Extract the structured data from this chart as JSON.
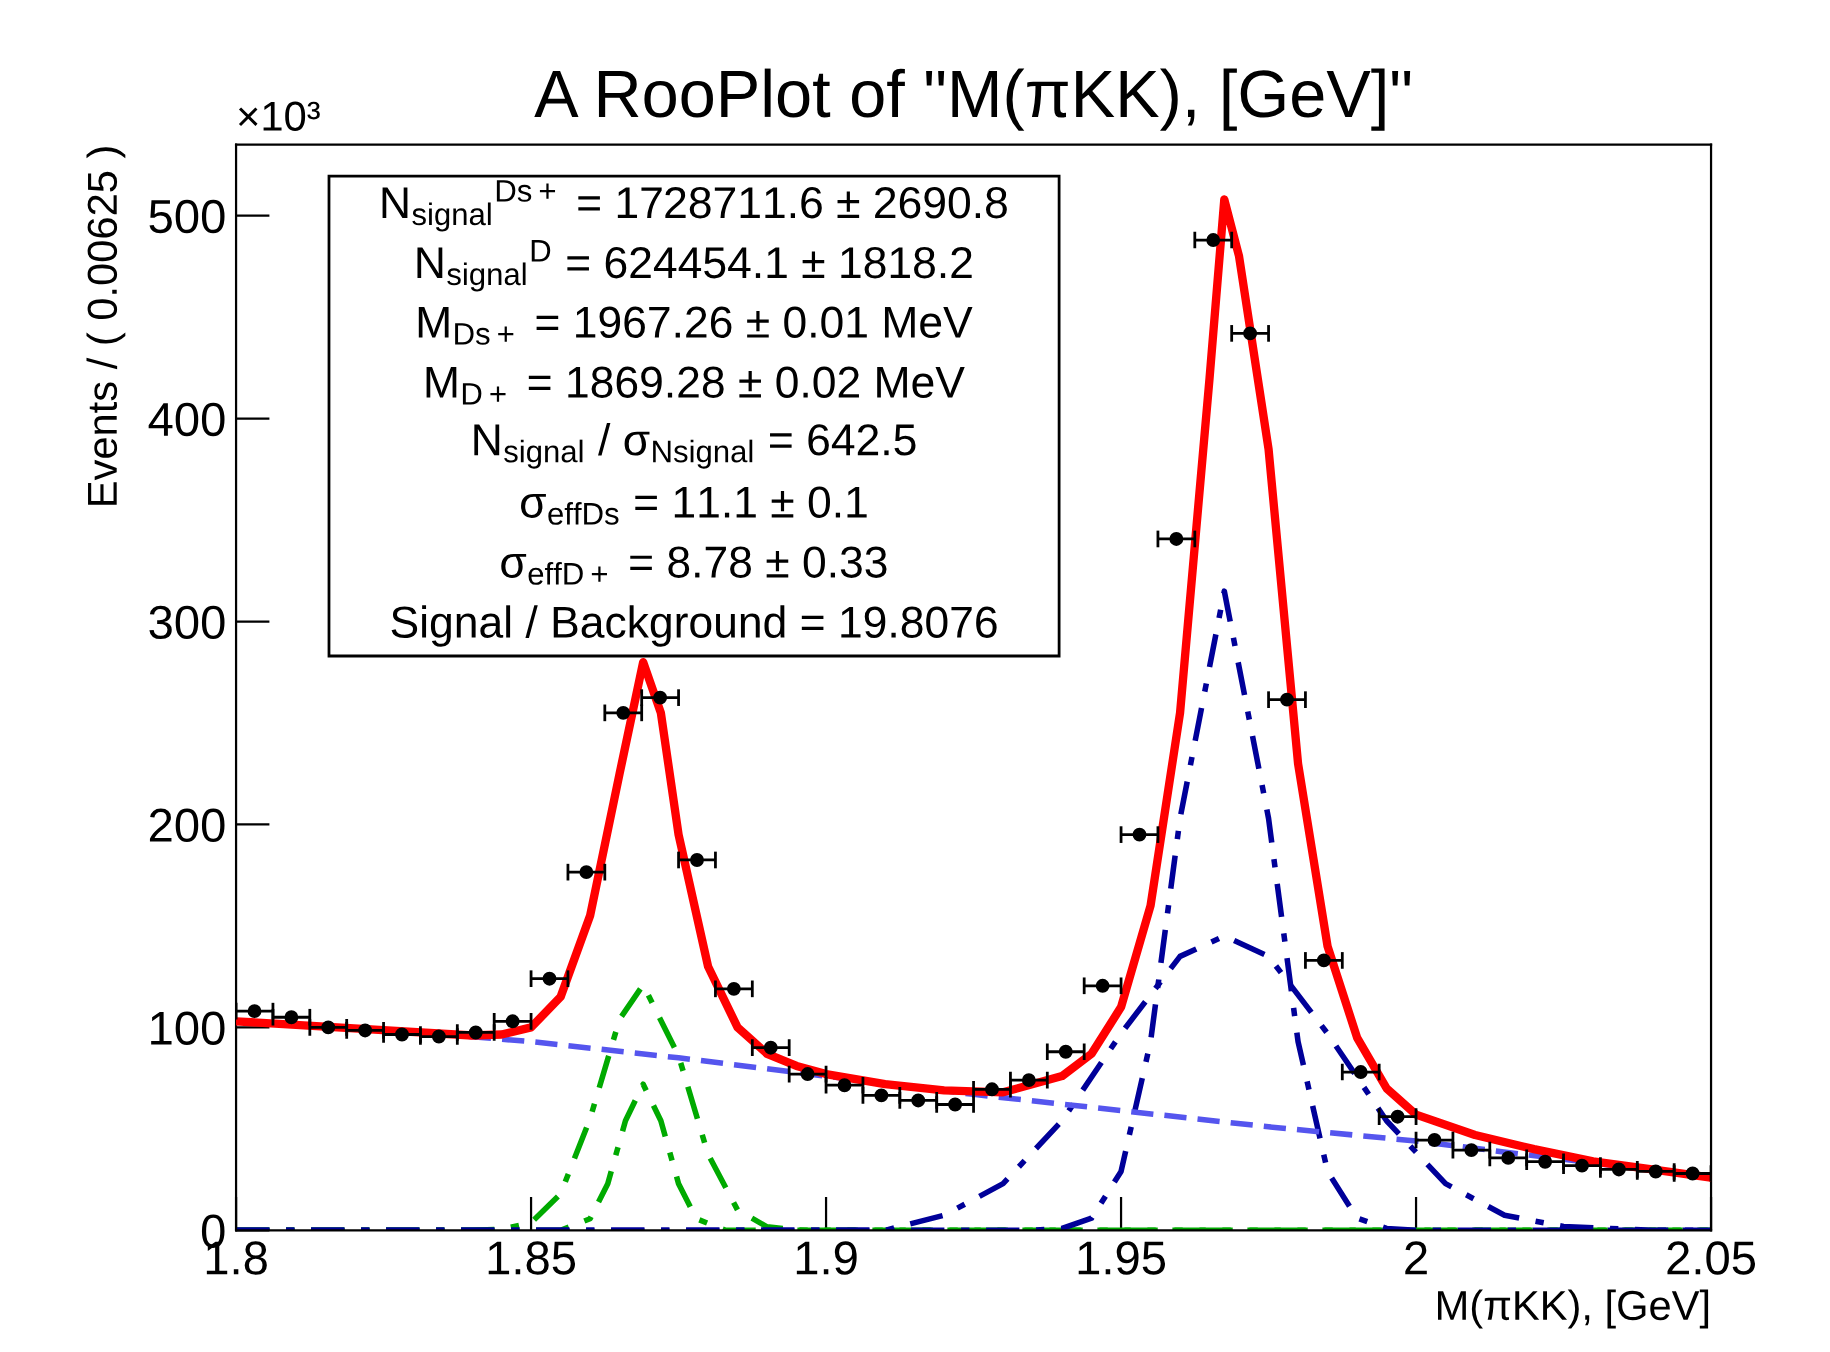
{
  "chart_data": {
    "type": "scatter",
    "title": "A RooPlot of \"M(πKK), [GeV]\"",
    "xlabel": "M(πKK), [GeV]",
    "ylabel": "Events / ( 0.00625 )",
    "xlim": [
      1.8,
      2.05
    ],
    "xticks": [
      1.8,
      1.85,
      1.9,
      1.95,
      2,
      2.05
    ],
    "ylim": [
      0,
      535
    ],
    "yticks": [
      0,
      100,
      200,
      300,
      400,
      500
    ],
    "grid": false,
    "legend": false,
    "annotations": [
      "×10³",
      "N$_{signal}$$^{Ds+}$ = 1728711.6 ± 2690.8",
      "N$_{signal}$$^{D}$ = 624454.1 ± 1818.2",
      "M$_{Ds+}$ = 1967.26 ± 0.01 MeV",
      "M$_{D+}$ = 1869.28 ± 0.02 MeV",
      "N$_{signal}$ / σ$_{Nsignal}$ = 642.5",
      "σ$_{effDs}$ = 11.1 ± 0.1",
      "σ$_{effD+}$ = 8.78 ± 0.33",
      "Signal / Background = 19.8076"
    ],
    "series": [
      {
        "type": "line",
        "color": "#00aa00",
        "line_style": "dashdot",
        "marker": "none",
        "x": [
          1.8,
          1.84,
          1.845,
          1.85,
          1.855,
          1.86,
          1.865,
          1.869,
          1.875,
          1.88,
          1.885,
          1.89,
          1.895,
          1.9,
          2.05
        ],
        "values": [
          0,
          0,
          0.5,
          3.7,
          18,
          55,
          104,
          121,
          86,
          37.5,
          10,
          1.7,
          0.1,
          0,
          0
        ]
      },
      {
        "type": "line",
        "color": "#00aa00",
        "line_style": "dashdot",
        "marker": "none",
        "x": [
          1.8,
          1.855,
          1.86,
          1.863,
          1.866,
          1.869,
          1.872,
          1.875,
          1.878,
          1.883,
          2.05
        ],
        "values": [
          0,
          0,
          5.7,
          23,
          54,
          72,
          54,
          23,
          5.7,
          0,
          0
        ]
      },
      {
        "type": "line",
        "color": "#000099",
        "line_style": "dashdot",
        "marker": "none",
        "x": [
          1.8,
          1.91,
          1.92,
          1.93,
          1.94,
          1.95,
          1.96,
          1.9675,
          1.975,
          1.985,
          1.995,
          2.005,
          2.015,
          2.025,
          2.04,
          2.05
        ],
        "values": [
          0,
          0,
          7.4,
          23,
          54,
          97,
          135,
          145,
          135,
          97,
          54,
          23,
          7.4,
          1.9,
          0,
          0
        ]
      },
      {
        "type": "line",
        "color": "#000099",
        "line_style": "dashdot",
        "marker": "none",
        "x": [
          1.8,
          1.935,
          1.94,
          1.945,
          1.95,
          1.955,
          1.96,
          1.9675,
          1.975,
          1.98,
          1.985,
          1.99,
          1.995,
          2.0,
          2.05
        ],
        "values": [
          0,
          0,
          0.9,
          6,
          29,
          93,
          203,
          315,
          203,
          93,
          29,
          6,
          0.9,
          0,
          0
        ]
      },
      {
        "type": "line",
        "color": "#ff0000",
        "line_style": "solid",
        "marker": "none",
        "x": [
          1.8,
          1.82,
          1.84,
          1.845,
          1.85,
          1.855,
          1.86,
          1.865,
          1.869,
          1.872,
          1.875,
          1.88,
          1.885,
          1.89,
          1.895,
          1.9,
          1.91,
          1.92,
          1.93,
          1.94,
          1.945,
          1.95,
          1.955,
          1.96,
          1.965,
          1.9675,
          1.97,
          1.975,
          1.98,
          1.985,
          1.99,
          1.995,
          2.0,
          2.01,
          2.02,
          2.03,
          2.04,
          2.05
        ],
        "values": [
          103,
          99.5,
          96,
          96.5,
          100,
          115,
          155,
          225,
          280,
          255,
          195,
          130,
          100,
          87,
          81,
          77,
          72,
          69,
          68,
          76,
          87,
          110,
          160,
          255,
          420,
          508,
          480,
          385,
          230,
          140,
          95,
          70,
          57,
          47,
          40,
          34,
          30,
          26
        ]
      },
      {
        "type": "line",
        "color": "#5555ee",
        "line_style": "dashed",
        "marker": "none",
        "x": [
          1.8,
          1.825,
          1.85,
          1.875,
          1.9,
          1.925,
          1.95,
          1.975,
          2.0,
          2.025,
          2.05
        ],
        "values": [
          103,
          99,
          93,
          85,
          76,
          67,
          59,
          51,
          44,
          35,
          26
        ]
      },
      {
        "type": "scatter",
        "color": "#000000",
        "marker": "circle",
        "x": [
          1.803125,
          1.809375,
          1.815625,
          1.821875,
          1.828125,
          1.834375,
          1.840625,
          1.846875,
          1.853125,
          1.859375,
          1.865625,
          1.871875,
          1.878125,
          1.884375,
          1.890625,
          1.896875,
          1.903125,
          1.909375,
          1.915625,
          1.921875,
          1.928125,
          1.934375,
          1.940625,
          1.946875,
          1.953125,
          1.959375,
          1.965625,
          1.971875,
          1.978125,
          1.984375,
          1.990625,
          1.996875,
          2.003125,
          2.009375,
          2.015625,
          2.021875,
          2.028125,
          2.034375,
          2.040625,
          2.046875
        ],
        "values": [
          108,
          105,
          100,
          98.5,
          96.5,
          95.5,
          97.5,
          103,
          124,
          176.5,
          255,
          262.5,
          182.5,
          119,
          90,
          77,
          71.5,
          66.5,
          64,
          62,
          69.5,
          74,
          88,
          120.5,
          195,
          340.7,
          488,
          442,
          261.5,
          133,
          78,
          56,
          44.5,
          39.5,
          35.7,
          33.8,
          31.9,
          30,
          29,
          28
        ],
        "xerrors": [
          0.003125,
          0.003125,
          0.003125,
          0.003125,
          0.003125,
          0.003125,
          0.003125,
          0.003125,
          0.003125,
          0.003125,
          0.003125,
          0.003125,
          0.003125,
          0.003125,
          0.003125,
          0.003125,
          0.003125,
          0.003125,
          0.003125,
          0.003125,
          0.003125,
          0.003125,
          0.003125,
          0.003125,
          0.003125,
          0.003125,
          0.003125,
          0.003125,
          0.003125,
          0.003125,
          0.003125,
          0.003125,
          0.003125,
          0.003125,
          0.003125,
          0.003125,
          0.003125,
          0.003125,
          0.003125,
          0.003125
        ]
      }
    ]
  }
}
